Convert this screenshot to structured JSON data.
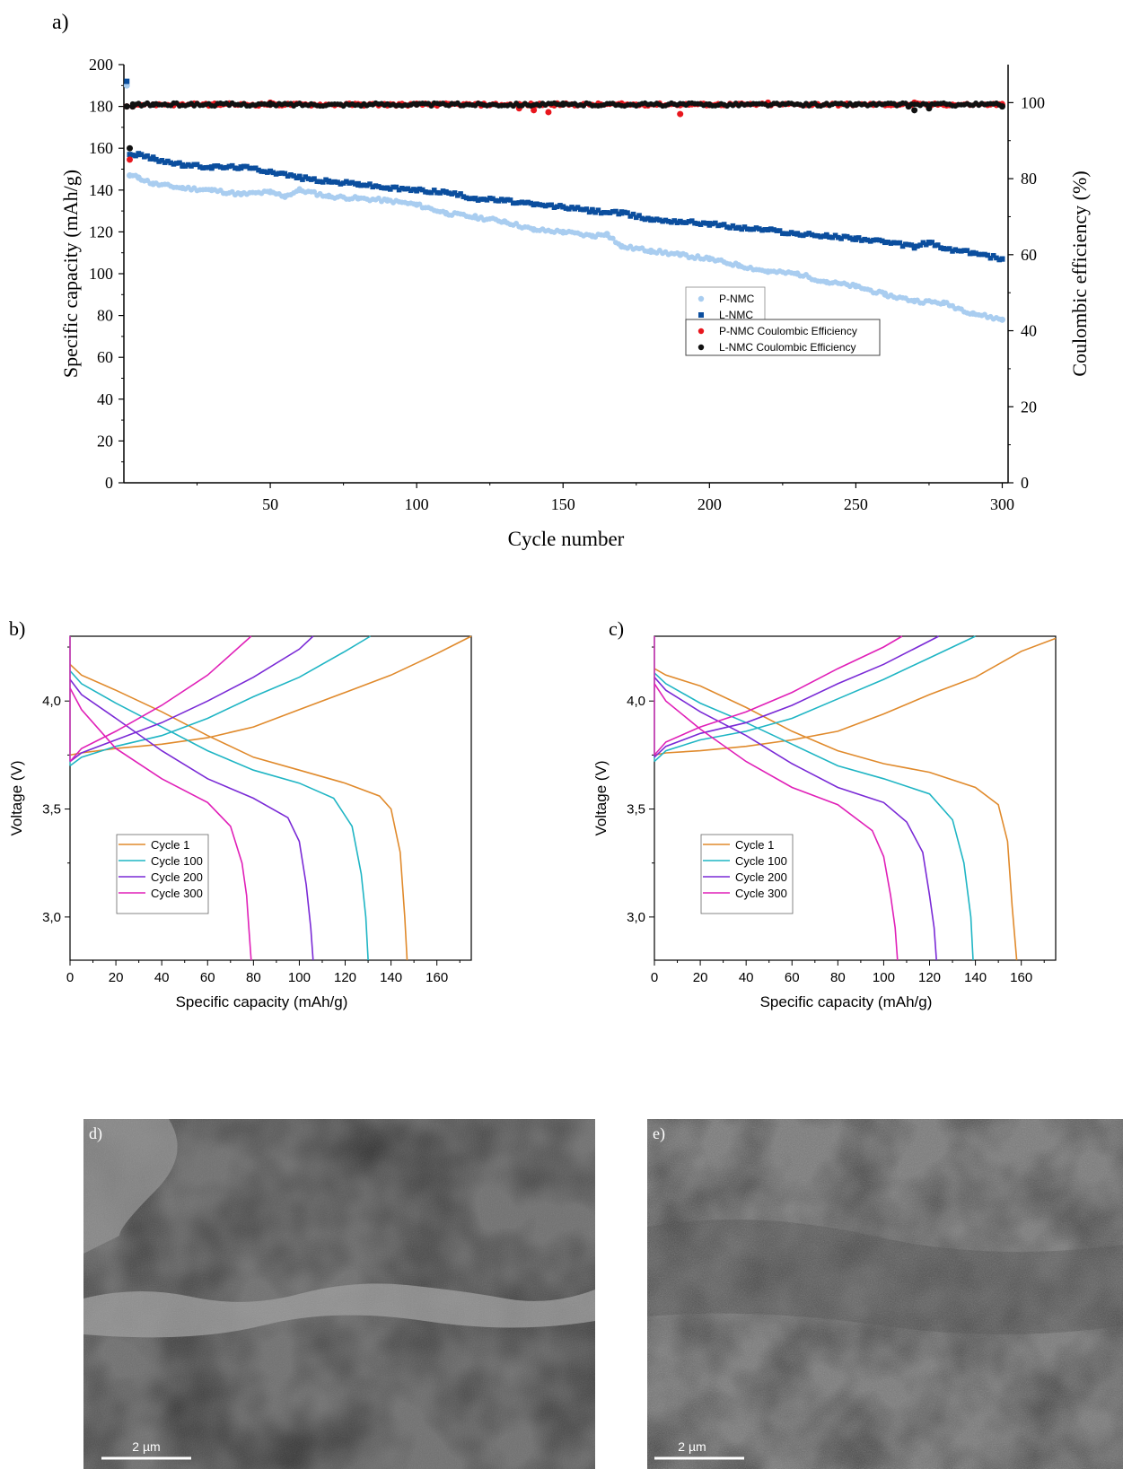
{
  "panel_labels": {
    "a": "a)",
    "b": "b)",
    "c": "c)",
    "d": "d)",
    "e": "e)"
  },
  "colors": {
    "p_nmc": "#a9cdf0",
    "l_nmc": "#0b4e9e",
    "p_ce": "#e8161d",
    "l_ce": "#111111",
    "cycle1": "#e08a2c",
    "cycle100": "#1fb5c4",
    "cycle200": "#7a2ad6",
    "cycle300": "#e020b8"
  },
  "chart_data": [
    {
      "id": "a",
      "type": "scatter",
      "xlabel": "Cycle number",
      "ylabel": "Specific capacity (mAh/g)",
      "ylabel_right": "Coulombic efficiency (%)",
      "xlim": [
        0,
        302
      ],
      "ylim": [
        0,
        200
      ],
      "ylim_right": [
        0,
        110
      ],
      "x_ticks": [
        50,
        100,
        150,
        200,
        250,
        300
      ],
      "y_ticks": [
        0,
        20,
        40,
        60,
        80,
        100,
        120,
        140,
        160,
        180,
        200
      ],
      "y_ticks_right": [
        0,
        20,
        40,
        60,
        80,
        100
      ],
      "legend_position": "center-right",
      "series": [
        {
          "name": "P-NMC",
          "axis": "left",
          "marker": "circle",
          "x": [
            1,
            2,
            5,
            10,
            20,
            30,
            40,
            50,
            55,
            60,
            70,
            80,
            90,
            100,
            110,
            120,
            130,
            140,
            150,
            160,
            165,
            170,
            180,
            190,
            200,
            210,
            220,
            230,
            240,
            250,
            260,
            270,
            280,
            290,
            300
          ],
          "y": [
            190,
            147,
            146,
            143,
            141,
            140,
            138,
            139,
            137,
            140,
            137,
            136,
            135,
            133,
            129,
            127,
            125,
            121,
            120,
            118,
            119,
            113,
            111,
            109,
            107,
            104,
            101,
            100,
            96,
            94,
            90,
            87,
            86,
            81,
            78
          ]
        },
        {
          "name": "L-NMC",
          "axis": "left",
          "marker": "square",
          "x": [
            1,
            2,
            5,
            10,
            20,
            30,
            40,
            50,
            60,
            70,
            80,
            90,
            100,
            110,
            120,
            130,
            140,
            150,
            160,
            170,
            180,
            190,
            200,
            210,
            220,
            230,
            240,
            250,
            260,
            270,
            275,
            280,
            290,
            300
          ],
          "y": [
            192,
            157,
            157,
            155,
            152,
            151,
            151,
            149,
            146,
            144,
            143,
            141,
            140,
            139,
            136,
            135,
            133,
            132,
            130,
            129,
            126,
            125,
            124,
            122,
            121,
            119,
            118,
            117,
            115,
            113,
            115,
            112,
            110,
            107
          ]
        },
        {
          "name": "P-NMC Coulombic Efficiency",
          "axis": "right",
          "marker": "circle",
          "x": [
            1,
            2,
            3,
            10,
            50,
            100,
            135,
            140,
            145,
            150,
            170,
            190,
            200,
            220,
            250,
            270,
            275,
            300
          ],
          "y": [
            99,
            85,
            99,
            99.5,
            100,
            99.5,
            98.5,
            98,
            97.5,
            99.5,
            99.5,
            97,
            99.5,
            100,
            99.5,
            100,
            99,
            99.5
          ]
        },
        {
          "name": "L-NMC Coulombic Efficiency",
          "axis": "right",
          "marker": "circle",
          "x": [
            1,
            2,
            3,
            10,
            50,
            100,
            150,
            200,
            250,
            268,
            270,
            275,
            300
          ],
          "y": [
            99,
            88,
            99,
            99.5,
            99.5,
            99.5,
            99.5,
            99.5,
            99.5,
            99,
            98,
            98.5,
            99
          ]
        }
      ]
    },
    {
      "id": "b",
      "type": "line",
      "xlabel": "Specific capacity (mAh/g)",
      "ylabel": "Voltage (V)",
      "xlim": [
        0,
        175
      ],
      "ylim": [
        2.8,
        4.3
      ],
      "x_ticks": [
        0,
        20,
        40,
        60,
        80,
        100,
        120,
        140,
        160
      ],
      "y_ticks": [
        "3,0",
        "3,5",
        "4,0"
      ],
      "legend_position": "bottom-left",
      "series": [
        {
          "name": "Cycle 1",
          "max_capacity": 147,
          "charge_x": [
            0,
            5,
            20,
            40,
            60,
            80,
            100,
            120,
            140,
            160,
            175
          ],
          "charge_y": [
            3.75,
            3.76,
            3.78,
            3.8,
            3.83,
            3.88,
            3.96,
            4.04,
            4.12,
            4.22,
            4.3
          ],
          "discharge_x": [
            0,
            5,
            20,
            40,
            60,
            80,
            100,
            120,
            135,
            140,
            144,
            146,
            147
          ],
          "discharge_y": [
            4.17,
            4.12,
            4.05,
            3.95,
            3.84,
            3.74,
            3.68,
            3.62,
            3.56,
            3.5,
            3.3,
            3.0,
            2.8
          ]
        },
        {
          "name": "Cycle 100",
          "max_capacity": 130,
          "charge_x": [
            0,
            5,
            20,
            40,
            60,
            80,
            100,
            120,
            131
          ],
          "charge_y": [
            3.7,
            3.74,
            3.79,
            3.84,
            3.92,
            4.02,
            4.11,
            4.23,
            4.3
          ],
          "discharge_x": [
            0,
            5,
            20,
            40,
            60,
            80,
            100,
            115,
            123,
            127,
            129,
            130
          ],
          "discharge_y": [
            4.14,
            4.08,
            3.99,
            3.88,
            3.77,
            3.68,
            3.62,
            3.55,
            3.42,
            3.2,
            3.0,
            2.8
          ]
        },
        {
          "name": "Cycle 200",
          "max_capacity": 106,
          "charge_x": [
            0,
            5,
            20,
            40,
            60,
            80,
            100,
            106
          ],
          "charge_y": [
            3.72,
            3.76,
            3.82,
            3.9,
            4.0,
            4.11,
            4.24,
            4.3
          ],
          "discharge_x": [
            0,
            5,
            20,
            40,
            60,
            80,
            95,
            100,
            103,
            105,
            106
          ],
          "discharge_y": [
            4.1,
            4.03,
            3.92,
            3.77,
            3.64,
            3.55,
            3.46,
            3.35,
            3.15,
            2.95,
            2.8
          ]
        },
        {
          "name": "Cycle 300",
          "max_capacity": 79,
          "charge_x": [
            0,
            5,
            20,
            40,
            60,
            79
          ],
          "charge_y": [
            3.72,
            3.78,
            3.86,
            3.98,
            4.12,
            4.3
          ],
          "discharge_x": [
            0,
            5,
            20,
            40,
            60,
            70,
            75,
            77,
            78,
            79
          ],
          "discharge_y": [
            4.06,
            3.96,
            3.78,
            3.64,
            3.53,
            3.42,
            3.25,
            3.1,
            2.95,
            2.8
          ]
        }
      ]
    },
    {
      "id": "c",
      "type": "line",
      "xlabel": "Specific capacity (mAh/g)",
      "ylabel": "Voltage (V)",
      "xlim": [
        0,
        175
      ],
      "ylim": [
        2.8,
        4.3
      ],
      "x_ticks": [
        0,
        20,
        40,
        60,
        80,
        100,
        120,
        140,
        160
      ],
      "y_ticks": [
        "3,0",
        "3,5",
        "4,0"
      ],
      "legend_position": "bottom-left",
      "series": [
        {
          "name": "Cycle 1",
          "max_capacity": 158,
          "charge_x": [
            0,
            5,
            20,
            40,
            60,
            80,
            100,
            120,
            140,
            160,
            175
          ],
          "charge_y": [
            3.75,
            3.76,
            3.77,
            3.79,
            3.82,
            3.86,
            3.94,
            4.03,
            4.11,
            4.23,
            4.29
          ],
          "discharge_x": [
            0,
            5,
            20,
            40,
            60,
            80,
            100,
            120,
            140,
            150,
            154,
            156,
            158
          ],
          "discharge_y": [
            4.15,
            4.12,
            4.07,
            3.97,
            3.86,
            3.77,
            3.71,
            3.67,
            3.6,
            3.52,
            3.35,
            3.05,
            2.8
          ]
        },
        {
          "name": "Cycle 100",
          "max_capacity": 139,
          "charge_x": [
            0,
            5,
            20,
            40,
            60,
            80,
            100,
            120,
            140
          ],
          "charge_y": [
            3.72,
            3.77,
            3.82,
            3.86,
            3.92,
            4.01,
            4.1,
            4.2,
            4.3
          ],
          "discharge_x": [
            0,
            5,
            20,
            40,
            60,
            80,
            100,
            120,
            130,
            135,
            138,
            139
          ],
          "discharge_y": [
            4.13,
            4.08,
            3.99,
            3.9,
            3.8,
            3.7,
            3.64,
            3.57,
            3.45,
            3.25,
            3.0,
            2.8
          ]
        },
        {
          "name": "Cycle 200",
          "max_capacity": 123,
          "charge_x": [
            0,
            5,
            20,
            40,
            60,
            80,
            100,
            124
          ],
          "charge_y": [
            3.74,
            3.79,
            3.85,
            3.9,
            3.98,
            4.08,
            4.17,
            4.3
          ],
          "discharge_x": [
            0,
            5,
            20,
            40,
            60,
            80,
            100,
            110,
            117,
            120,
            122,
            123
          ],
          "discharge_y": [
            4.11,
            4.05,
            3.95,
            3.84,
            3.71,
            3.6,
            3.53,
            3.44,
            3.3,
            3.1,
            2.95,
            2.8
          ]
        },
        {
          "name": "Cycle 300",
          "max_capacity": 106,
          "charge_x": [
            0,
            5,
            20,
            40,
            60,
            80,
            100,
            108
          ],
          "charge_y": [
            3.75,
            3.81,
            3.88,
            3.95,
            4.04,
            4.15,
            4.25,
            4.3
          ],
          "discharge_x": [
            0,
            5,
            20,
            40,
            60,
            80,
            95,
            100,
            103,
            105,
            106
          ],
          "discharge_y": [
            4.08,
            4.0,
            3.87,
            3.72,
            3.6,
            3.52,
            3.4,
            3.28,
            3.1,
            2.95,
            2.8
          ]
        }
      ]
    }
  ],
  "sem": {
    "d": {
      "scale_label": "2 µm"
    },
    "e": {
      "scale_label": "2 µm"
    }
  }
}
